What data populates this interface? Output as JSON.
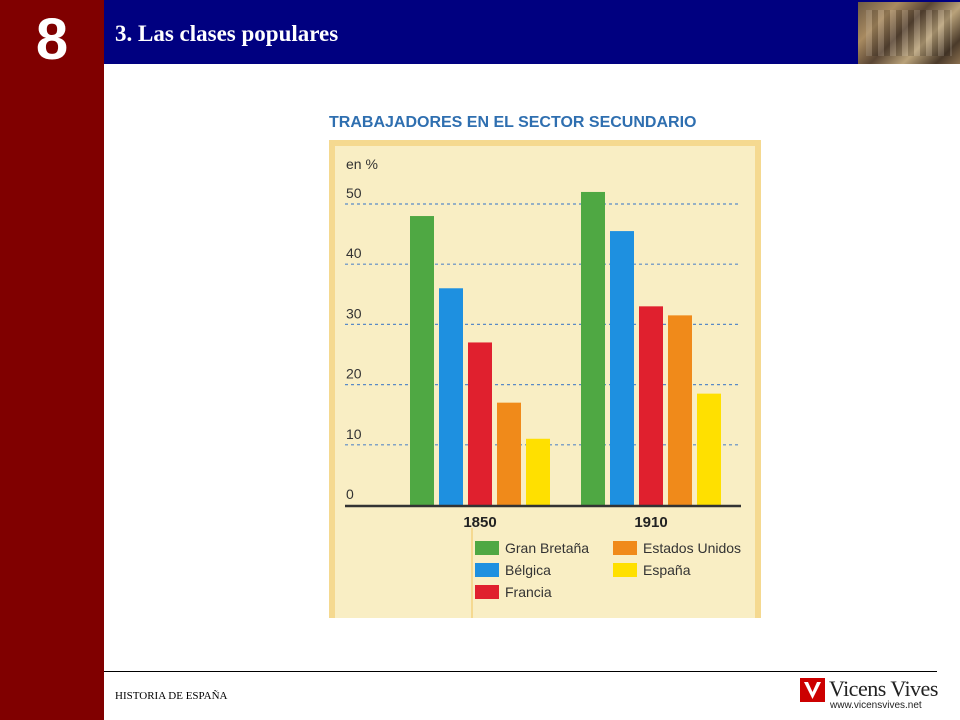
{
  "slide": {
    "chapter_number": "8",
    "title": "3. Las clases populares",
    "footer": "HISTORIA DE ESPAÑA",
    "logo_name": "Vicens Vives",
    "logo_url": "www.vicensvives.net"
  },
  "colors": {
    "sidebar": "#800000",
    "header": "#000080",
    "chart_background": "#f9eec4",
    "chart_border": "#f5d990",
    "grid": "#5a8ac6"
  },
  "chart_data": {
    "type": "bar",
    "title": "TRABAJADORES EN EL SECTOR SECUNDARIO",
    "ylabel": "en %",
    "xlabel": "",
    "categories": [
      "1850",
      "1910"
    ],
    "ylim": [
      0,
      50
    ],
    "yticks": [
      0,
      10,
      20,
      30,
      40,
      50
    ],
    "grid": true,
    "legend_position": "bottom",
    "series": [
      {
        "name": "Gran Bretaña",
        "color": "#4fa843",
        "values": [
          48,
          52
        ]
      },
      {
        "name": "Bélgica",
        "color": "#1e90e0",
        "values": [
          36,
          45.5
        ]
      },
      {
        "name": "Francia",
        "color": "#e0202e",
        "values": [
          27,
          33
        ]
      },
      {
        "name": "Estados Unidos",
        "color": "#f08a1a",
        "values": [
          17,
          31.5
        ]
      },
      {
        "name": "España",
        "color": "#ffe000",
        "values": [
          11,
          18.5
        ]
      }
    ]
  }
}
